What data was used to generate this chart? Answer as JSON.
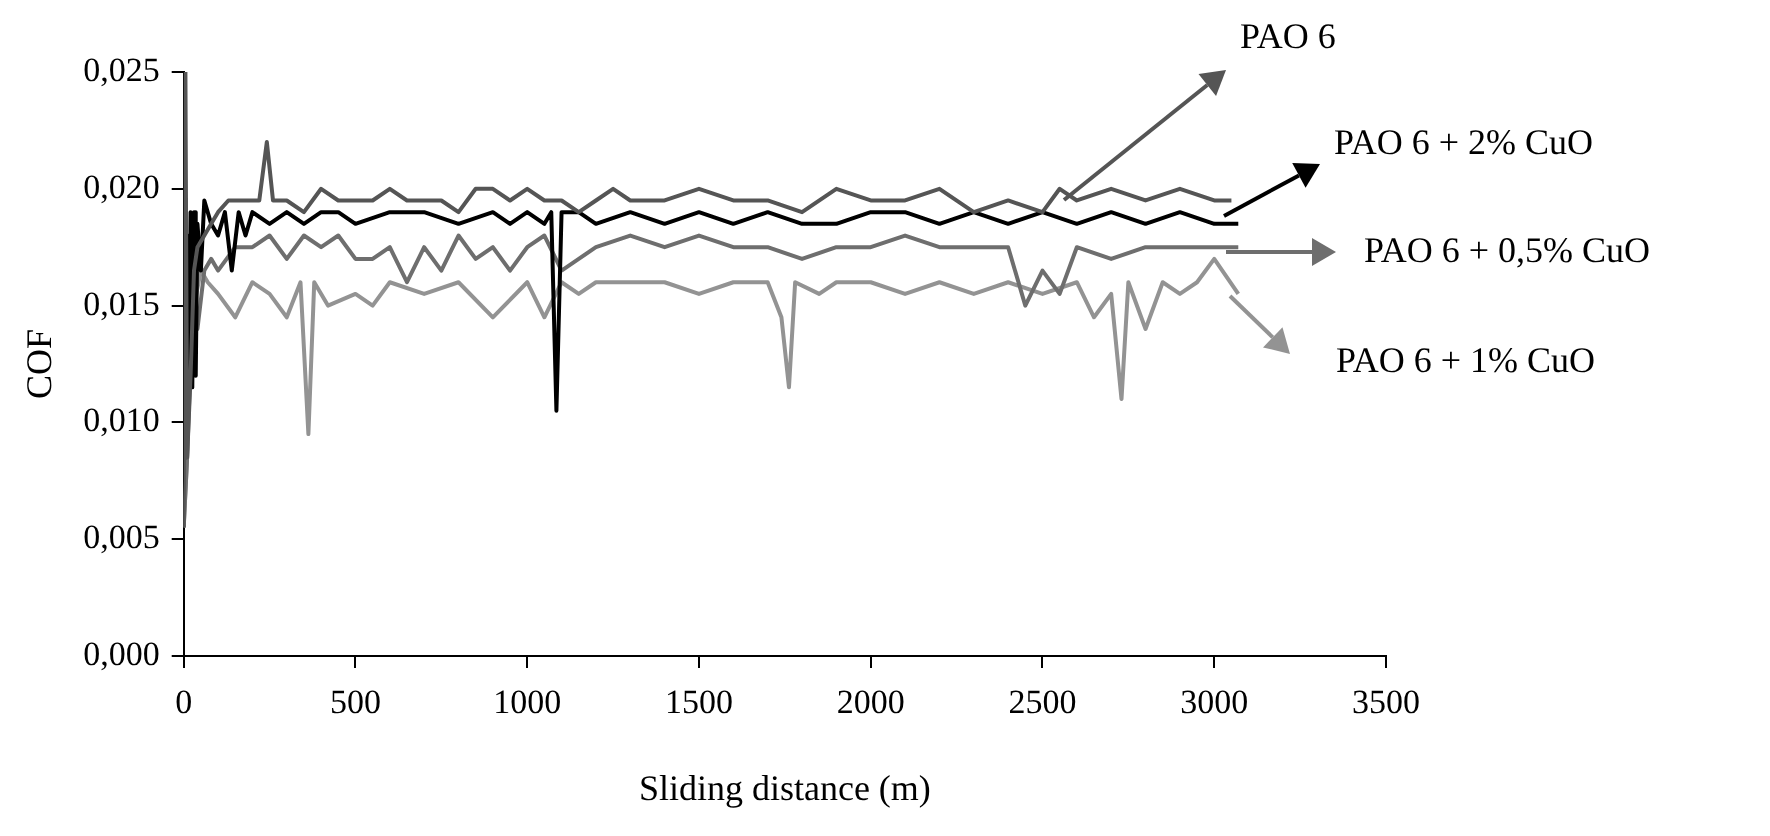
{
  "chart_data": {
    "type": "line",
    "xlabel": "Sliding distance (m)",
    "ylabel": "COF",
    "xlim": [
      0,
      3500
    ],
    "xticks": [
      0,
      500,
      1000,
      1500,
      2000,
      2500,
      3000,
      3500
    ],
    "ylim": [
      0,
      0.025
    ],
    "yticks": [
      {
        "value": 0,
        "label": "0,000"
      },
      {
        "value": 0.005,
        "label": "0,005"
      },
      {
        "value": 0.01,
        "label": "0,010"
      },
      {
        "value": 0.015,
        "label": "0,015"
      },
      {
        "value": 0.02,
        "label": "0,020"
      },
      {
        "value": 0.025,
        "label": "0,025"
      }
    ],
    "grid": false,
    "legend": "right",
    "marker": "none",
    "line_style": "solid",
    "series": [
      {
        "name": "PAO 6",
        "color": "#555555",
        "x": [
          0,
          5,
          10,
          20,
          30,
          40,
          60,
          80,
          100,
          130,
          160,
          200,
          220,
          242,
          260,
          300,
          350,
          400,
          450,
          500,
          550,
          600,
          650,
          700,
          750,
          800,
          850,
          900,
          950,
          1000,
          1050,
          1100,
          1150,
          1200,
          1250,
          1300,
          1400,
          1500,
          1600,
          1700,
          1800,
          1900,
          2000,
          2100,
          2200,
          2300,
          2400,
          2500,
          2550,
          2600,
          2700,
          2800,
          2900,
          3000,
          3050
        ],
        "values": [
          0.0055,
          0.025,
          0.0085,
          0.012,
          0.0165,
          0.0175,
          0.018,
          0.0185,
          0.019,
          0.0195,
          0.0195,
          0.0195,
          0.0195,
          0.022,
          0.0195,
          0.0195,
          0.019,
          0.02,
          0.0195,
          0.0195,
          0.0195,
          0.02,
          0.0195,
          0.0195,
          0.0195,
          0.019,
          0.02,
          0.02,
          0.0195,
          0.02,
          0.0195,
          0.0195,
          0.019,
          0.0195,
          0.02,
          0.0195,
          0.0195,
          0.02,
          0.0195,
          0.0195,
          0.019,
          0.02,
          0.0195,
          0.0195,
          0.02,
          0.019,
          0.0195,
          0.019,
          0.02,
          0.0195,
          0.02,
          0.0195,
          0.02,
          0.0195,
          0.0195
        ]
      },
      {
        "name": "PAO 6 + 2% CuO",
        "color": "#000000",
        "x": [
          0,
          5,
          10,
          15,
          20,
          25,
          30,
          35,
          40,
          50,
          60,
          80,
          100,
          120,
          140,
          160,
          180,
          200,
          250,
          300,
          350,
          400,
          450,
          500,
          600,
          700,
          800,
          900,
          950,
          1000,
          1050,
          1070,
          1085,
          1100,
          1150,
          1200,
          1300,
          1400,
          1500,
          1600,
          1700,
          1800,
          1900,
          2000,
          2100,
          2200,
          2300,
          2400,
          2500,
          2600,
          2700,
          2800,
          2900,
          3000,
          3070
        ],
        "values": [
          0.025,
          0.0085,
          0.018,
          0.011,
          0.019,
          0.0115,
          0.019,
          0.012,
          0.0185,
          0.0165,
          0.0195,
          0.0185,
          0.018,
          0.019,
          0.0165,
          0.019,
          0.018,
          0.019,
          0.0185,
          0.019,
          0.0185,
          0.019,
          0.019,
          0.0185,
          0.019,
          0.019,
          0.0185,
          0.019,
          0.0185,
          0.019,
          0.0185,
          0.019,
          0.0105,
          0.019,
          0.019,
          0.0185,
          0.019,
          0.0185,
          0.019,
          0.0185,
          0.019,
          0.0185,
          0.0185,
          0.019,
          0.019,
          0.0185,
          0.019,
          0.0185,
          0.019,
          0.0185,
          0.019,
          0.0185,
          0.019,
          0.0185,
          0.0185
        ]
      },
      {
        "name": "PAO 6 + 0,5% CuO",
        "color": "#6e6e6e",
        "x": [
          0,
          10,
          20,
          30,
          40,
          60,
          80,
          100,
          150,
          200,
          250,
          300,
          350,
          400,
          450,
          500,
          550,
          600,
          650,
          700,
          750,
          800,
          850,
          900,
          950,
          1000,
          1050,
          1100,
          1150,
          1200,
          1300,
          1400,
          1500,
          1600,
          1700,
          1800,
          1900,
          2000,
          2100,
          2200,
          2300,
          2400,
          2450,
          2500,
          2550,
          2600,
          2700,
          2800,
          2900,
          3000,
          3070
        ],
        "values": [
          0.0055,
          0.0085,
          0.0125,
          0.0145,
          0.014,
          0.0165,
          0.017,
          0.0165,
          0.0175,
          0.0175,
          0.018,
          0.017,
          0.018,
          0.0175,
          0.018,
          0.017,
          0.017,
          0.0175,
          0.016,
          0.0175,
          0.0165,
          0.018,
          0.017,
          0.0175,
          0.0165,
          0.0175,
          0.018,
          0.0165,
          0.017,
          0.0175,
          0.018,
          0.0175,
          0.018,
          0.0175,
          0.0175,
          0.017,
          0.0175,
          0.0175,
          0.018,
          0.0175,
          0.0175,
          0.0175,
          0.015,
          0.0165,
          0.0155,
          0.0175,
          0.017,
          0.0175,
          0.0175,
          0.0175,
          0.0175
        ]
      },
      {
        "name": "PAO 6 + 1% CuO",
        "color": "#939393",
        "x": [
          0,
          10,
          20,
          30,
          50,
          70,
          100,
          150,
          200,
          250,
          300,
          340,
          363,
          380,
          420,
          500,
          550,
          600,
          700,
          800,
          900,
          1000,
          1050,
          1100,
          1150,
          1200,
          1300,
          1400,
          1500,
          1600,
          1700,
          1740,
          1762,
          1780,
          1850,
          1900,
          2000,
          2100,
          2200,
          2300,
          2400,
          2500,
          2600,
          2650,
          2700,
          2730,
          2750,
          2800,
          2850,
          2900,
          2950,
          3000,
          3070
        ],
        "values": [
          0.0055,
          0.0085,
          0.014,
          0.015,
          0.0165,
          0.016,
          0.0155,
          0.0145,
          0.016,
          0.0155,
          0.0145,
          0.016,
          0.0095,
          0.016,
          0.015,
          0.0155,
          0.015,
          0.016,
          0.0155,
          0.016,
          0.0145,
          0.016,
          0.0145,
          0.016,
          0.0155,
          0.016,
          0.016,
          0.016,
          0.0155,
          0.016,
          0.016,
          0.0145,
          0.0115,
          0.016,
          0.0155,
          0.016,
          0.016,
          0.0155,
          0.016,
          0.0155,
          0.016,
          0.0155,
          0.016,
          0.0145,
          0.0155,
          0.011,
          0.016,
          0.014,
          0.016,
          0.0155,
          0.016,
          0.017,
          0.0155
        ]
      }
    ]
  }
}
